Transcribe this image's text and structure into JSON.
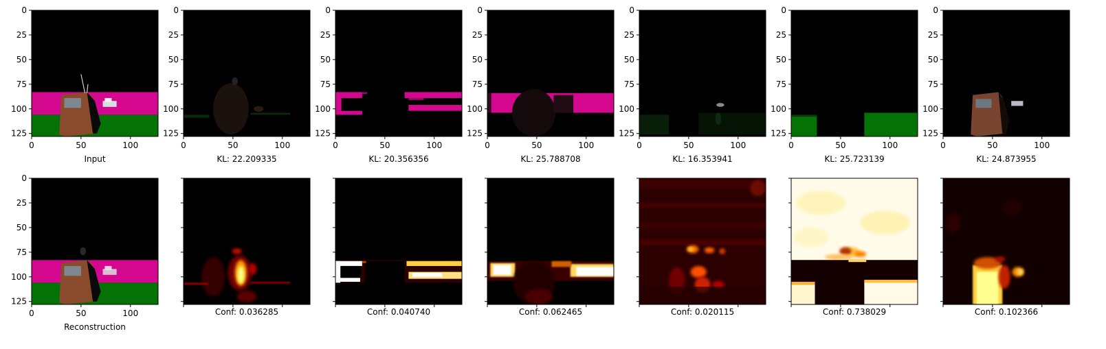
{
  "chart_data": {
    "type": "heatmap",
    "rows": 2,
    "cols": 7,
    "image_size": 128,
    "axes": {
      "xlim": [
        0,
        128
      ],
      "ylim": [
        128,
        0
      ],
      "xticks": [
        0,
        50,
        100
      ],
      "yticks": [
        0,
        25,
        50,
        75,
        100,
        125
      ]
    },
    "labels": {
      "input": "Input",
      "reconstruction": "Reconstruction"
    },
    "kl_labels": [
      "KL: 22.209335",
      "KL: 20.356356",
      "KL: 25.788708",
      "KL: 16.353941",
      "KL: 25.723139",
      "KL: 24.873955"
    ],
    "conf_labels": [
      "Conf: 0.036285",
      "Conf: 0.040740",
      "Conf: 0.062465",
      "Conf: 0.020115",
      "Conf: 0.738029",
      "Conf: 0.102366"
    ],
    "kl_values": [
      22.209335,
      20.356356,
      25.788708,
      16.353941,
      25.723139,
      24.873955
    ],
    "confidence_values": [
      0.036285,
      0.04074,
      0.062465,
      0.020115,
      0.738029,
      0.102366
    ],
    "colors": {
      "background": "#000000",
      "magenta_floor": "#d4088f",
      "green_floor": "#047204",
      "object_brown": "#8a4a2c",
      "object_window": "#7d8790",
      "heat_low": "#000000",
      "heat_mid": "#b00000",
      "heat_high": "#ffb000",
      "heat_max": "#ffffff"
    }
  }
}
